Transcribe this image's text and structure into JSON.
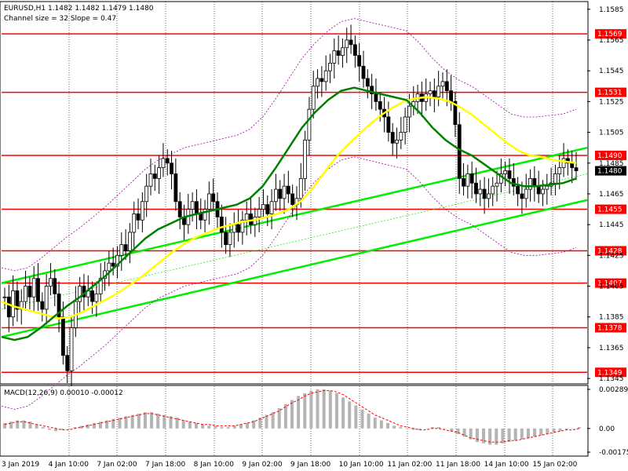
{
  "header": {
    "symbol_line": "EURUSD,H1  1.1482 1.1482 1.1479 1.1480",
    "channel_line": "Channel size = 32 Slope = 0.47"
  },
  "macd": {
    "label": "MACD(12,26,9) 0.00010 -0.00012",
    "ticks": [
      "0.00289",
      "0.00",
      "-0.00175"
    ]
  },
  "colors": {
    "level": "#ff0000",
    "channel": "#00ee00",
    "ma_fast": "#ffff00",
    "ma_slow": "#008000",
    "envelope": "#a000a0",
    "candle": "#000000",
    "macd_hist": "#b4b4b4",
    "macd_signal": "#ff0000",
    "grid": "#000000"
  },
  "chart_data": {
    "type": "candlestick",
    "instrument": "EURUSD",
    "timeframe": "H1",
    "last_price": "1.1480",
    "price_axis": {
      "range": [
        1.1342,
        1.159
      ],
      "ticks": [
        "1.1585",
        "1.1565",
        "1.1545",
        "1.1525",
        "1.1505",
        "1.1485",
        "1.1465",
        "1.1445",
        "1.1425",
        "1.1405",
        "1.1385",
        "1.1365",
        "1.1345"
      ]
    },
    "time_axis": {
      "labels": [
        "3 Jan 2019",
        "4 Jan 10:00",
        "7 Jan 02:00",
        "7 Jan 18:00",
        "8 Jan 10:00",
        "9 Jan 02:00",
        "9 Jan 18:00",
        "10 Jan 10:00",
        "11 Jan 02:00",
        "11 Jan 18:00",
        "14 Jan 10:00",
        "15 Jan 02:00"
      ]
    },
    "levels": [
      {
        "label": "1.1569",
        "value": 1.1569
      },
      {
        "label": "1.1531",
        "value": 1.1531
      },
      {
        "label": "1.1490",
        "value": 1.149
      },
      {
        "label": "1.1455",
        "value": 1.1455
      },
      {
        "label": "1.1428",
        "value": 1.1428
      },
      {
        "label": "1.1407",
        "value": 1.1407
      },
      {
        "label": "1.1378",
        "value": 1.1378
      },
      {
        "label": "1.1349",
        "value": 1.1349
      }
    ],
    "series": [
      {
        "close": [
          1.1398,
          1.1385,
          1.1402,
          1.139,
          1.1395,
          1.1405,
          1.1398,
          1.141,
          1.1395,
          1.139,
          1.1405,
          1.141,
          1.14,
          1.1385,
          1.136,
          1.135,
          1.1378,
          1.1395,
          1.1405,
          1.1398,
          1.1402,
          1.1395,
          1.14,
          1.141,
          1.1415,
          1.142,
          1.1418,
          1.1425,
          1.1432,
          1.1428,
          1.144,
          1.1452,
          1.1448,
          1.146,
          1.147,
          1.1478,
          1.1475,
          1.1482,
          1.1488,
          1.1485,
          1.1478,
          1.146,
          1.145,
          1.1445,
          1.1455,
          1.146,
          1.1452,
          1.1448,
          1.1455,
          1.1465,
          1.146,
          1.145,
          1.144,
          1.1432,
          1.144,
          1.1445,
          1.144,
          1.1448,
          1.1452,
          1.1445,
          1.145,
          1.1455,
          1.1458,
          1.1452,
          1.146,
          1.1468,
          1.1462,
          1.147,
          1.1465,
          1.1458,
          1.1462,
          1.1475,
          1.15,
          1.152,
          1.1535,
          1.154,
          1.1538,
          1.1545,
          1.155,
          1.1558,
          1.1555,
          1.156,
          1.1565,
          1.1562,
          1.1555,
          1.1548,
          1.154,
          1.1535,
          1.153,
          1.1525,
          1.152,
          1.1515,
          1.1505,
          1.1498,
          1.15,
          1.1505,
          1.1515,
          1.1522,
          1.1525,
          1.153,
          1.1525,
          1.153,
          1.1532,
          1.1528,
          1.1535,
          1.1538,
          1.1532,
          1.1525,
          1.151,
          1.1475,
          1.147,
          1.1478,
          1.1472,
          1.1465,
          1.1468,
          1.1462,
          1.1465,
          1.147,
          1.1472,
          1.1478,
          1.148,
          1.1475,
          1.147,
          1.1465,
          1.1462,
          1.1468,
          1.1475,
          1.147,
          1.1465,
          1.1468,
          1.147,
          1.1472,
          1.1478,
          1.1482,
          1.1488,
          1.1485,
          1.1482,
          1.148
        ]
      },
      {
        "name": "",
        "ma_fast": [
          1.1395,
          1.1392,
          1.139,
          1.1388,
          1.1386,
          1.1384,
          1.1385,
          1.1388,
          1.1392,
          1.1396,
          1.14,
          1.1405,
          1.141,
          1.1416,
          1.1422,
          1.1428,
          1.1433,
          1.1437,
          1.144,
          1.1443,
          1.1445,
          1.1447,
          1.1448,
          1.145,
          1.1452,
          1.1455,
          1.146,
          1.1468,
          1.1478,
          1.1488,
          1.1496,
          1.1503,
          1.151,
          1.1516,
          1.1521,
          1.1525,
          1.1527,
          1.1528,
          1.1527,
          1.1525,
          1.1521,
          1.1516,
          1.151,
          1.1504,
          1.1498,
          1.1493,
          1.149,
          1.1489,
          1.1487,
          1.1486,
          1.1485
        ]
      },
      {
        "name": "",
        "ma_slow": [
          1.1372,
          1.137,
          1.1372,
          1.1378,
          1.1385,
          1.1392,
          1.1398,
          1.1405,
          1.1412,
          1.142,
          1.1428,
          1.1436,
          1.1442,
          1.1446,
          1.145,
          1.1452,
          1.1454,
          1.1456,
          1.1458,
          1.1462,
          1.147,
          1.1482,
          1.1495,
          1.1508,
          1.1518,
          1.1526,
          1.1532,
          1.1534,
          1.1532,
          1.153,
          1.1528,
          1.1526,
          1.1518,
          1.1508,
          1.15,
          1.1494,
          1.149,
          1.1484,
          1.1478,
          1.1472,
          1.147,
          1.147,
          1.1471,
          1.1472,
          1.1475
        ]
      }
    ],
    "macd_hist": [
      0.0004,
      0.0005,
      0.0006,
      0.0006,
      0.0005,
      0.0003,
      0.0001,
      -0.0001,
      -0.0002,
      -0.0001,
      0.0,
      0.0001,
      0.0002,
      0.0003,
      0.0004,
      0.0005,
      0.0006,
      0.0007,
      0.0008,
      0.0009,
      0.001,
      0.0011,
      0.0012,
      0.0012,
      0.0011,
      0.001,
      0.0009,
      0.0008,
      0.0006,
      0.0005,
      0.0004,
      0.0003,
      0.0002,
      0.0002,
      0.0001,
      0.0001,
      0.0002,
      0.0003,
      0.0004,
      0.0006,
      0.0008,
      0.001,
      0.0012,
      0.0015,
      0.0018,
      0.0021,
      0.0024,
      0.0026,
      0.0028,
      0.0029,
      0.0029,
      0.0028,
      0.0026,
      0.0023,
      0.002,
      0.0017,
      0.0014,
      0.0011,
      0.0008,
      0.0006,
      0.0004,
      0.0002,
      0.0001,
      0.0,
      -0.0001,
      -0.0001,
      0.0,
      0.0001,
      0.0001,
      0.0,
      -0.0002,
      -0.0004,
      -0.0006,
      -0.0008,
      -0.001,
      -0.0011,
      -0.0012,
      -0.0012,
      -0.0011,
      -0.001,
      -0.0009,
      -0.0008,
      -0.0007,
      -0.0006,
      -0.0005,
      -0.0004,
      -0.0003,
      -0.0002,
      -0.0001,
      0.0,
      0.0001
    ],
    "macd_signal": [
      0.0003,
      0.0004,
      0.0005,
      0.0005,
      0.0004,
      0.0003,
      0.0002,
      0.0001,
      0.0,
      -0.0001,
      -0.0001,
      0.0,
      0.0001,
      0.0002,
      0.0003,
      0.0004,
      0.0005,
      0.0006,
      0.0007,
      0.0008,
      0.0009,
      0.001,
      0.0011,
      0.0011,
      0.001,
      0.0009,
      0.0008,
      0.0007,
      0.0006,
      0.0005,
      0.0004,
      0.0003,
      0.0003,
      0.0002,
      0.0002,
      0.0002,
      0.0002,
      0.0003,
      0.0004,
      0.0005,
      0.0007,
      0.0009,
      0.0011,
      0.0013,
      0.0016,
      0.0019,
      0.0021,
      0.0024,
      0.0026,
      0.0027,
      0.0028,
      0.0028,
      0.0027,
      0.0025,
      0.0022,
      0.0019,
      0.0016,
      0.0013,
      0.001,
      0.0008,
      0.0006,
      0.0004,
      0.0002,
      0.0001,
      0.0,
      -0.0001,
      -0.0001,
      0.0,
      0.0,
      -0.0001,
      -0.0002,
      -0.0003,
      -0.0005,
      -0.0007,
      -0.0008,
      -0.0009,
      -0.001,
      -0.001,
      -0.001,
      -0.0009,
      -0.0009,
      -0.0008,
      -0.0007,
      -0.0006,
      -0.0005,
      -0.0004,
      -0.0003,
      -0.0002,
      -0.0001,
      -0.0001,
      0.0
    ]
  }
}
